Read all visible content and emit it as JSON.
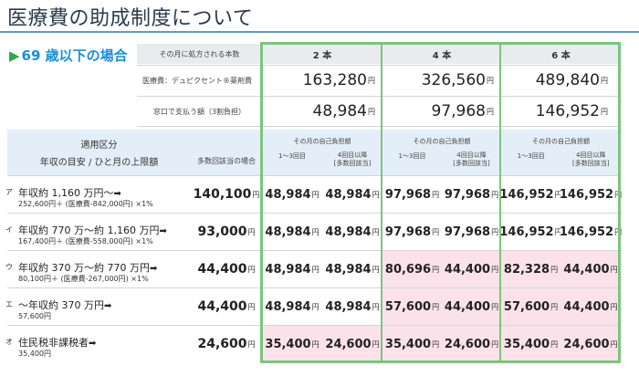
{
  "page": {
    "title": "医療費の助成制度について"
  },
  "section": {
    "arrow": "▶",
    "label": "69 歳以下の場合"
  },
  "header": {
    "monthly_count_label": "その月に処方される本数",
    "cols": [
      "2 本",
      "4 本",
      "6 本"
    ],
    "drug_cost_label": "医療費：デュピクセント®薬剤費",
    "drug_costs": [
      "163,280",
      "326,560",
      "489,840"
    ],
    "window_label": "窓口で支払う額（3割負担）",
    "window_pay": [
      "48,984",
      "97,968",
      "146,952"
    ],
    "yen": "円"
  },
  "subheader": {
    "category_label": "適用区分",
    "category_sub": "年収の目安 / ひと月の上限額",
    "multi_label": "多数回該当の場合",
    "self_pay_label": "その月の自己負担額",
    "col_a": "1〜3回目",
    "col_b_line1": "4回目以降",
    "col_b_line2": "[多数回該当]"
  },
  "rows": [
    {
      "kana": "ア",
      "main": "年収約 1,160 万円〜",
      "sub": "252,600円＋ (医療費-842,000円) ×1%",
      "multi": "140,100",
      "vals": [
        "48,984",
        "48,984",
        "97,968",
        "97,968",
        "146,952",
        "146,952"
      ],
      "pink": [
        false,
        false,
        false,
        false,
        false,
        false
      ]
    },
    {
      "kana": "イ",
      "main": "年収約 770 万〜約 1,160 万円",
      "sub": "167,400円＋ (医療費-558,000円) ×1%",
      "multi": "93,000",
      "vals": [
        "48,984",
        "48,984",
        "97,968",
        "97,968",
        "146,952",
        "146,952"
      ],
      "pink": [
        false,
        false,
        false,
        false,
        false,
        false
      ]
    },
    {
      "kana": "ウ",
      "main": "年収約 370 万〜約 770 万円",
      "sub": "80,100円＋ (医療費-267,000円) ×1%",
      "multi": "44,400",
      "vals": [
        "48,984",
        "48,984",
        "80,696",
        "44,400",
        "82,328",
        "44,400"
      ],
      "pink": [
        false,
        false,
        true,
        true,
        true,
        true
      ]
    },
    {
      "kana": "エ",
      "main": "〜年収約 370 万円",
      "sub": "57,600円",
      "multi": "44,400",
      "vals": [
        "48,984",
        "48,984",
        "57,600",
        "44,400",
        "57,600",
        "44,400"
      ],
      "pink": [
        false,
        false,
        true,
        true,
        true,
        true
      ]
    },
    {
      "kana": "オ",
      "main": "住民税非課税者",
      "sub": "35,400円",
      "multi": "24,600",
      "vals": [
        "35,400",
        "24,600",
        "35,400",
        "24,600",
        "35,400",
        "24,600"
      ],
      "pink": [
        true,
        true,
        true,
        true,
        true,
        true
      ]
    }
  ]
}
